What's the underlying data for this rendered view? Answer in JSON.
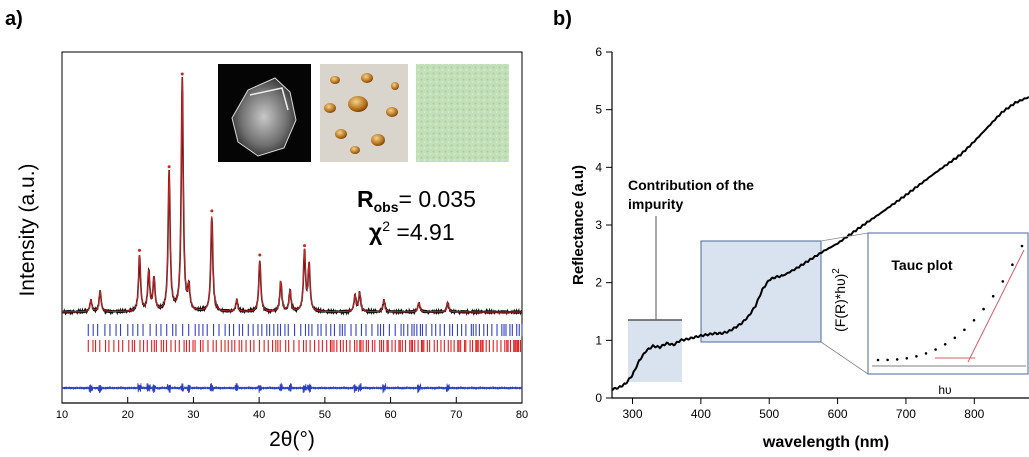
{
  "figure": {
    "panel_a_label": "a)",
    "panel_b_label": "b)"
  },
  "chart_data": [
    {
      "panel": "a)",
      "type": "line",
      "xlabel": "2θ(°)",
      "ylabel": "Intensity (a.u.)",
      "xlim": [
        10,
        80
      ],
      "xticks": [
        10,
        20,
        30,
        40,
        50,
        60,
        70,
        80
      ],
      "grid": false,
      "peaks": {
        "x": [
          14.4,
          15.8,
          21.8,
          23.2,
          24.0,
          26.3,
          28.3,
          29.3,
          32.8,
          36.6,
          40.1,
          43.3,
          44.7,
          46.9,
          47.6,
          54.6,
          55.3,
          59.0,
          64.3,
          68.7
        ],
        "height": [
          0.05,
          0.09,
          0.24,
          0.17,
          0.14,
          0.6,
          1.0,
          0.1,
          0.41,
          0.05,
          0.22,
          0.13,
          0.09,
          0.26,
          0.2,
          0.07,
          0.08,
          0.05,
          0.04,
          0.04
        ]
      },
      "tick_rows": [
        {
          "color": "#3340c8",
          "x_range": [
            14,
            80
          ]
        },
        {
          "color": "#e02020",
          "x_range": [
            14,
            80
          ]
        }
      ],
      "annotations": {
        "r_obs_label": "R",
        "r_obs_sub": "obs",
        "r_obs_value": "= 0.035",
        "chi_label": "χ",
        "chi_sup": "2",
        "chi_value": " =4.91"
      },
      "inset_photos": [
        "sem-image",
        "crystals-photo",
        "green-powder-photo"
      ]
    },
    {
      "panel": "b)",
      "type": "line",
      "xlabel": "wavelength (nm)",
      "ylabel": "Reflectance (a.u)",
      "xlim": [
        270,
        880
      ],
      "ylim": [
        0,
        6
      ],
      "xticks": [
        300,
        400,
        500,
        600,
        700,
        800
      ],
      "yticks": [
        0,
        1,
        2,
        3,
        4,
        5,
        6
      ],
      "grid": false,
      "series": [
        {
          "x": [
            270,
            280,
            290,
            300,
            310,
            320,
            330,
            340,
            350,
            360,
            370,
            380,
            390,
            400,
            410,
            420,
            430,
            440,
            450,
            460,
            470,
            480,
            490,
            500,
            510,
            520,
            540,
            560,
            580,
            600,
            620,
            640,
            660,
            680,
            700,
            720,
            740,
            760,
            780,
            800,
            820,
            840,
            860,
            880
          ],
          "y": [
            0.15,
            0.18,
            0.25,
            0.4,
            0.65,
            0.82,
            0.9,
            0.88,
            0.95,
            0.92,
            1.0,
            1.02,
            1.05,
            1.08,
            1.1,
            1.12,
            1.12,
            1.15,
            1.22,
            1.3,
            1.42,
            1.6,
            1.88,
            2.05,
            2.1,
            2.12,
            2.25,
            2.4,
            2.55,
            2.68,
            2.85,
            3.02,
            3.18,
            3.35,
            3.52,
            3.7,
            3.88,
            4.05,
            4.22,
            4.45,
            4.7,
            4.95,
            5.12,
            5.22
          ]
        }
      ],
      "annotations": {
        "impurity_text_line1": "Contribution of the",
        "impurity_text_line2": "impurity"
      },
      "inset": {
        "title": "Tauc plot",
        "xlabel": "hυ",
        "ylabel": "(F(R)*hυ)",
        "ylabel_sup": "2"
      }
    }
  ]
}
